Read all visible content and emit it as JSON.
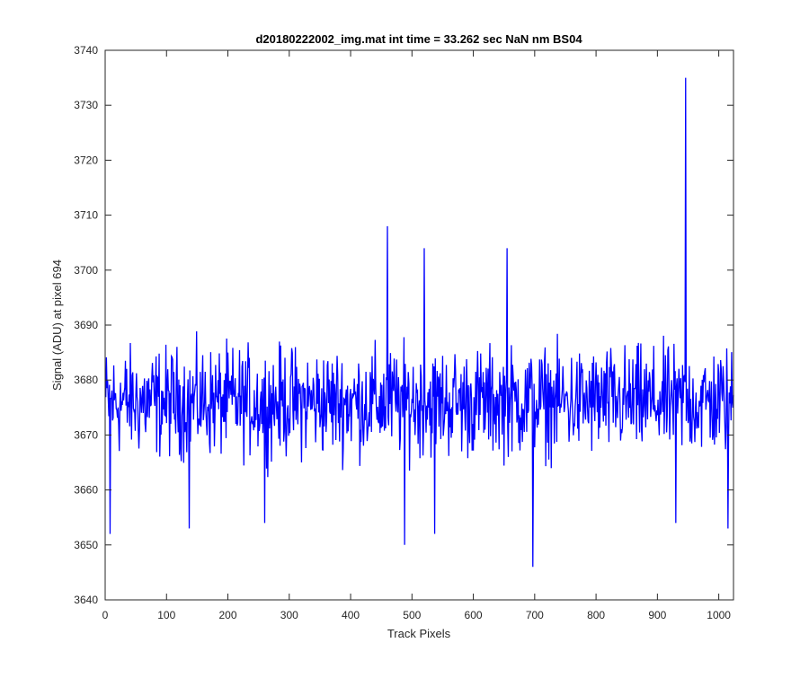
{
  "chart_data": {
    "type": "line",
    "title": "d20180222002_img.mat int time = 33.262 sec  NaN nm BS04",
    "xlabel": "Track Pixels",
    "ylabel": "Signal (ADU) at pixel 694",
    "xlim": [
      0,
      1024
    ],
    "ylim": [
      3640,
      3740
    ],
    "x_ticks": [
      0,
      100,
      200,
      300,
      400,
      500,
      600,
      700,
      800,
      900,
      1000
    ],
    "y_ticks": [
      3640,
      3650,
      3660,
      3670,
      3680,
      3690,
      3700,
      3710,
      3720,
      3730,
      3740
    ],
    "grid": false,
    "series": [
      {
        "color": "#0000ff",
        "x_start": 1,
        "x_step": 1,
        "baseline": 3676,
        "noise_amplitude": 9,
        "n_points": 1024,
        "notable_points": [
          {
            "x": 8,
            "y": 3652
          },
          {
            "x": 137,
            "y": 3653
          },
          {
            "x": 260,
            "y": 3654
          },
          {
            "x": 460,
            "y": 3708
          },
          {
            "x": 488,
            "y": 3650
          },
          {
            "x": 520,
            "y": 3704
          },
          {
            "x": 537,
            "y": 3652
          },
          {
            "x": 655,
            "y": 3704
          },
          {
            "x": 697,
            "y": 3646
          },
          {
            "x": 930,
            "y": 3654
          },
          {
            "x": 946,
            "y": 3735
          },
          {
            "x": 1015,
            "y": 3653
          }
        ]
      }
    ]
  }
}
